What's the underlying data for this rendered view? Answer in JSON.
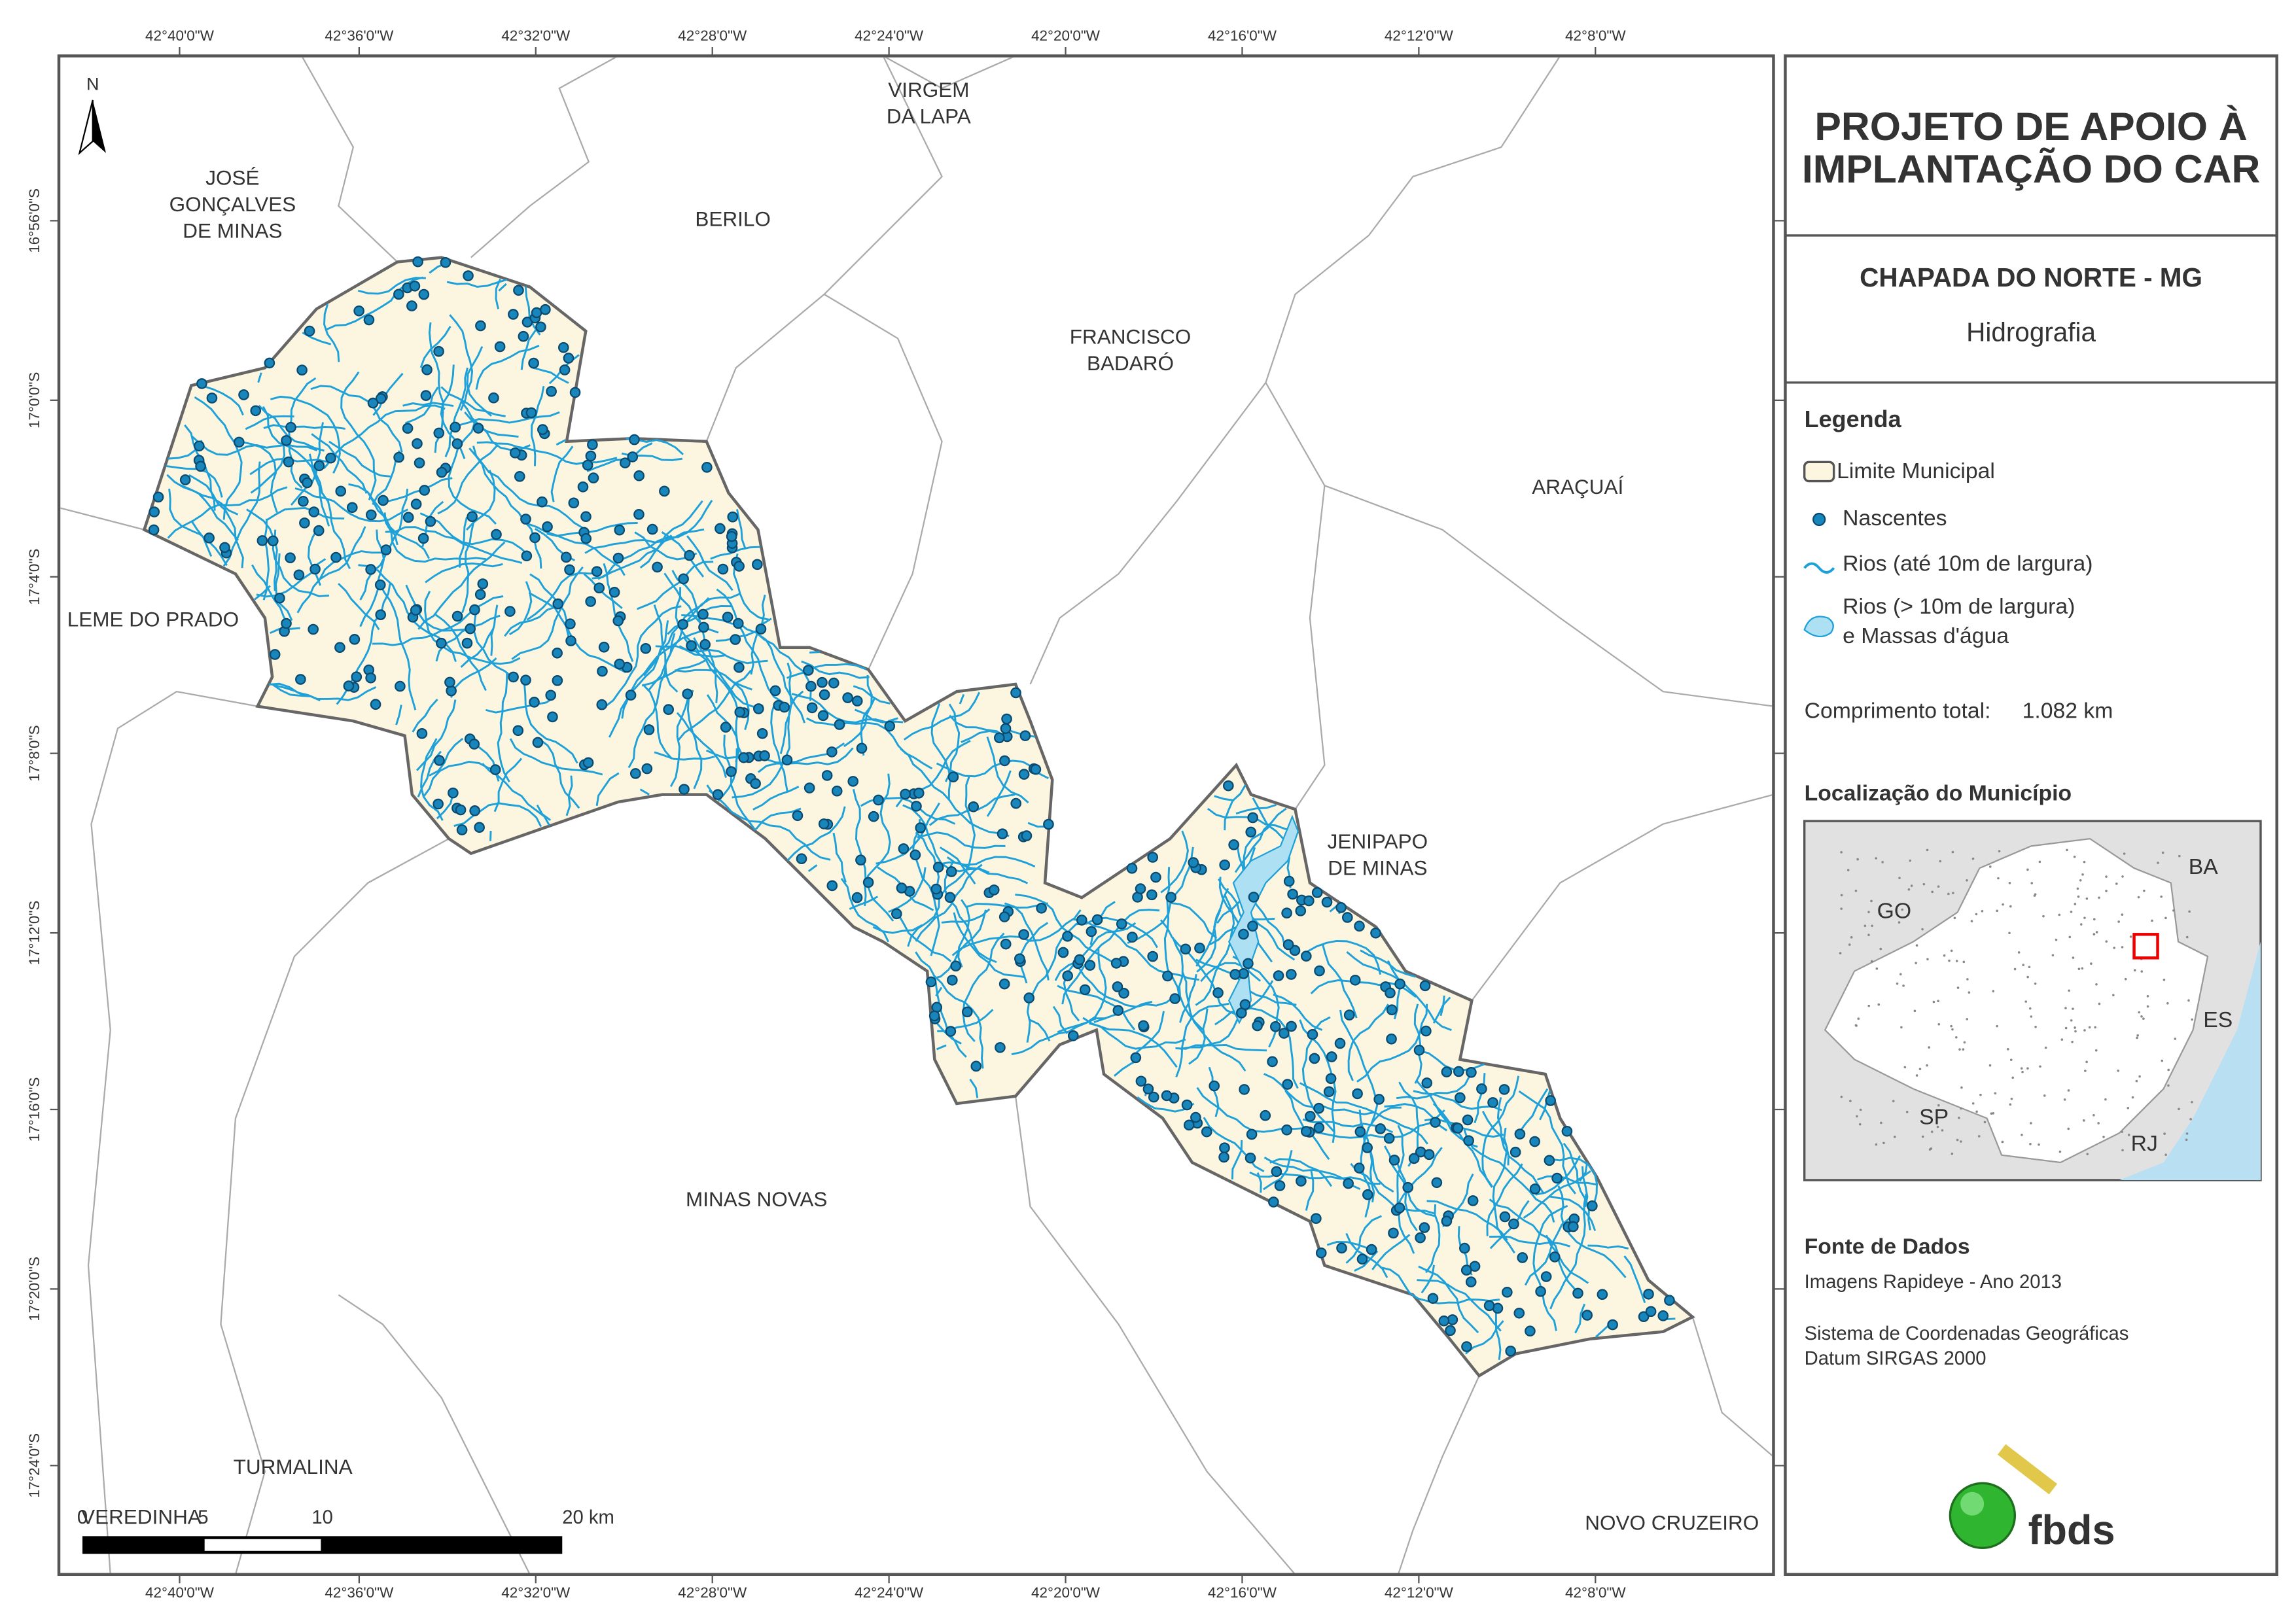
{
  "map": {
    "lon_labels": [
      "42°40'0\"W",
      "42°36'0\"W",
      "42°32'0\"W",
      "42°28'0\"W",
      "42°24'0\"W",
      "42°20'0\"W",
      "42°16'0\"W",
      "42°12'0\"W",
      "42°8'0\"W"
    ],
    "lat_labels": [
      "16°56'0\"S",
      "17°0'0\"S",
      "17°4'0\"S",
      "17°8'0\"S",
      "17°12'0\"S",
      "17°16'0\"S",
      "17°20'0\"S",
      "17°24'0\"S"
    ],
    "north": "N",
    "places": [
      {
        "lines": [
          "JOSÉ",
          "GONÇALVES",
          "DE MINAS"
        ]
      },
      {
        "lines": [
          "VIRGEM",
          "DA LAPA"
        ]
      },
      {
        "lines": [
          "BERILO"
        ]
      },
      {
        "lines": [
          "FRANCISCO",
          "BADARÓ"
        ]
      },
      {
        "lines": [
          "ARAÇUAÍ"
        ]
      },
      {
        "lines": [
          "LEME DO PRADO"
        ]
      },
      {
        "lines": [
          "JENIPAPO",
          "DE MINAS"
        ]
      },
      {
        "lines": [
          "MINAS NOVAS"
        ]
      },
      {
        "lines": [
          "TURMALINA"
        ]
      },
      {
        "lines": [
          "VEREDINHA"
        ]
      },
      {
        "lines": [
          "NOVO CRUZEIRO"
        ]
      }
    ],
    "scale_labels": [
      "0",
      "5",
      "10",
      "20 km"
    ]
  },
  "panel": {
    "title": [
      "PROJETO DE APOIO À",
      "IMPLANTAÇÃO DO CAR"
    ],
    "municipality": "CHAPADA DO NORTE - MG",
    "theme": "Hidrografia",
    "legend_title": "Legenda",
    "legend": [
      "Limite Municipal",
      "Nascentes",
      "Rios (até 10m de largura)",
      "Rios (> 10m de largura)",
      "e Massas d'água"
    ],
    "total_length_label": "Comprimento total:",
    "total_length_value": "1.082 km",
    "location_title": "Localização do Município",
    "states": [
      "BA",
      "GO",
      "ES",
      "SP",
      "RJ"
    ],
    "source_title": "Fonte de Dados",
    "source_lines": [
      "Imagens Rapideye - Ano 2013",
      "Sistema de Coordenadas Geográficas",
      "Datum SIRGAS 2000"
    ],
    "logo": "fbds"
  }
}
